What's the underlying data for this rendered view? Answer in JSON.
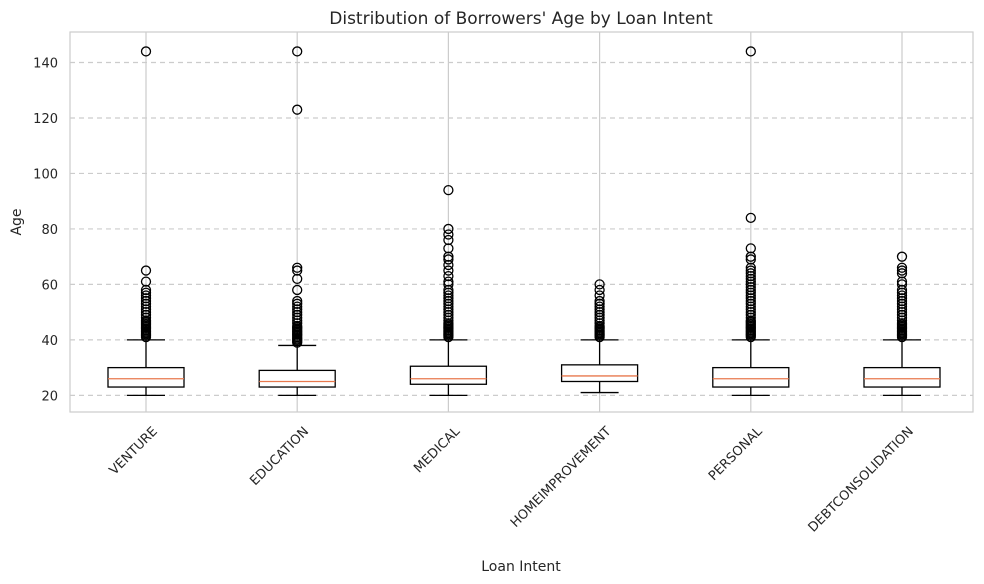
{
  "chart_data": {
    "type": "box",
    "title": "Distribution of Borrowers' Age by Loan Intent",
    "xlabel": "Loan Intent",
    "ylabel": "Age",
    "ylim": [
      14,
      151
    ],
    "yticks": [
      20,
      40,
      60,
      80,
      100,
      120,
      140
    ],
    "grid": {
      "x": true,
      "y": true,
      "y_style": "dashed"
    },
    "colors": {
      "box": "#000000",
      "median": "#e8784d",
      "grid": "#cccccc",
      "spine": "#cccccc"
    },
    "categories": [
      "VENTURE",
      "EDUCATION",
      "MEDICAL",
      "HOMEIMPROVEMENT",
      "PERSONAL",
      "DEBTCONSOLIDATION"
    ],
    "boxes": [
      {
        "category": "VENTURE",
        "whisker_low": 20,
        "q1": 23,
        "median": 26,
        "q3": 30,
        "whisker_high": 40,
        "outliers": [
          41,
          41.5,
          42,
          42.5,
          43,
          43.5,
          44,
          44.5,
          45,
          45.5,
          46,
          46.5,
          47,
          48,
          49,
          50,
          51,
          52,
          53,
          54,
          55,
          56,
          57,
          58,
          61,
          65,
          144
        ]
      },
      {
        "category": "EDUCATION",
        "whisker_low": 20,
        "q1": 23,
        "median": 25,
        "q3": 29,
        "whisker_high": 38,
        "outliers": [
          39,
          39.5,
          40,
          40.5,
          41,
          41.5,
          42,
          42.5,
          43,
          43.5,
          44,
          44.5,
          45,
          46,
          47,
          48,
          49,
          50,
          51,
          52,
          53,
          54,
          58,
          62,
          65,
          66,
          123,
          144
        ]
      },
      {
        "category": "MEDICAL",
        "whisker_low": 20,
        "q1": 24,
        "median": 26,
        "q3": 30.5,
        "whisker_high": 40,
        "outliers": [
          41,
          41.5,
          42,
          42.5,
          43,
          43.5,
          44,
          44.5,
          45,
          45.5,
          46,
          47,
          48,
          49,
          50,
          51,
          52,
          53,
          54,
          55,
          56,
          57,
          58,
          60,
          61,
          63,
          65,
          67,
          69,
          70,
          73,
          76,
          78,
          80,
          94
        ]
      },
      {
        "category": "HOMEIMPROVEMENT",
        "whisker_low": 21,
        "q1": 25,
        "median": 27,
        "q3": 31,
        "whisker_high": 40,
        "outliers": [
          41,
          41.5,
          42,
          42.5,
          43,
          43.5,
          44,
          44.5,
          45,
          46,
          47,
          48,
          49,
          50,
          51,
          52,
          53,
          54,
          56,
          58,
          60
        ]
      },
      {
        "category": "PERSONAL",
        "whisker_low": 20,
        "q1": 23,
        "median": 26,
        "q3": 30,
        "whisker_high": 40,
        "outliers": [
          41,
          41.5,
          42,
          42.5,
          43,
          43.5,
          44,
          44.5,
          45,
          45.5,
          46,
          46.5,
          47,
          48,
          49,
          50,
          51,
          52,
          53,
          54,
          55,
          56,
          57,
          58,
          59,
          60,
          61,
          62,
          63,
          64,
          65,
          66,
          69,
          70,
          73,
          84,
          144
        ]
      },
      {
        "category": "DEBTCONSOLIDATION",
        "whisker_low": 20,
        "q1": 23,
        "median": 26,
        "q3": 30,
        "whisker_high": 40,
        "outliers": [
          41,
          41.5,
          42,
          42.5,
          43,
          43.5,
          44,
          44.5,
          45,
          45.5,
          46,
          47,
          48,
          49,
          50,
          51,
          52,
          53,
          54,
          55,
          56,
          57,
          58,
          60,
          61,
          64,
          65,
          66,
          70
        ]
      }
    ]
  }
}
